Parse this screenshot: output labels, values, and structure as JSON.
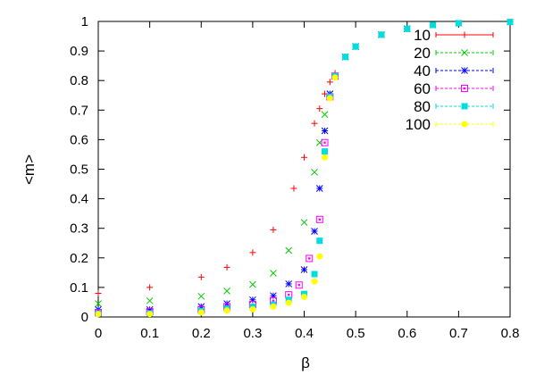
{
  "chart_data": {
    "type": "scatter",
    "title": "",
    "xlabel": "β",
    "ylabel": "<m>",
    "xlim": [
      0,
      0.8
    ],
    "ylim": [
      0,
      1
    ],
    "xticks": [
      "0",
      "0.1",
      "0.2",
      "0.3",
      "0.4",
      "0.5",
      "0.6",
      "0.7",
      "0.8"
    ],
    "yticks": [
      "0",
      "0.1",
      "0.2",
      "0.3",
      "0.4",
      "0.5",
      "0.6",
      "0.7",
      "0.8",
      "0.9",
      "1"
    ],
    "grid": false,
    "legend_position": "top-right",
    "series": [
      {
        "name": "10",
        "color": "#ff0000",
        "marker": "plus",
        "points": [
          [
            0,
            0.08
          ],
          [
            0.1,
            0.1
          ],
          [
            0.2,
            0.135
          ],
          [
            0.25,
            0.168
          ],
          [
            0.3,
            0.218
          ],
          [
            0.34,
            0.295
          ],
          [
            0.38,
            0.435
          ],
          [
            0.4,
            0.54
          ],
          [
            0.42,
            0.655
          ],
          [
            0.43,
            0.705
          ],
          [
            0.44,
            0.755
          ],
          [
            0.45,
            0.795
          ],
          [
            0.46,
            0.825
          ],
          [
            0.5,
            0.915
          ],
          [
            0.55,
            0.955
          ],
          [
            0.6,
            0.975
          ],
          [
            0.65,
            0.988
          ],
          [
            0.7,
            0.994
          ],
          [
            0.8,
            0.998
          ]
        ]
      },
      {
        "name": "20",
        "color": "#00cc00",
        "marker": "cross",
        "points": [
          [
            0,
            0.045
          ],
          [
            0.1,
            0.055
          ],
          [
            0.2,
            0.07
          ],
          [
            0.25,
            0.088
          ],
          [
            0.3,
            0.11
          ],
          [
            0.34,
            0.148
          ],
          [
            0.37,
            0.225
          ],
          [
            0.4,
            0.32
          ],
          [
            0.42,
            0.49
          ],
          [
            0.43,
            0.59
          ],
          [
            0.44,
            0.685
          ],
          [
            0.45,
            0.755
          ],
          [
            0.46,
            0.815
          ],
          [
            0.48,
            0.88
          ],
          [
            0.5,
            0.915
          ],
          [
            0.55,
            0.955
          ],
          [
            0.6,
            0.975
          ],
          [
            0.65,
            0.988
          ],
          [
            0.7,
            0.994
          ],
          [
            0.8,
            0.998
          ]
        ]
      },
      {
        "name": "40",
        "color": "#0000ff",
        "marker": "star",
        "points": [
          [
            0,
            0.025
          ],
          [
            0.1,
            0.025
          ],
          [
            0.2,
            0.035
          ],
          [
            0.25,
            0.045
          ],
          [
            0.3,
            0.058
          ],
          [
            0.34,
            0.072
          ],
          [
            0.37,
            0.112
          ],
          [
            0.4,
            0.16
          ],
          [
            0.42,
            0.29
          ],
          [
            0.43,
            0.435
          ],
          [
            0.44,
            0.63
          ],
          [
            0.45,
            0.755
          ],
          [
            0.46,
            0.815
          ],
          [
            0.48,
            0.88
          ],
          [
            0.5,
            0.915
          ],
          [
            0.55,
            0.955
          ],
          [
            0.6,
            0.975
          ]
        ]
      },
      {
        "name": "60",
        "color": "#ff00ff",
        "marker": "open-square",
        "points": [
          [
            0,
            0.015
          ],
          [
            0.1,
            0.018
          ],
          [
            0.2,
            0.025
          ],
          [
            0.25,
            0.035
          ],
          [
            0.3,
            0.042
          ],
          [
            0.34,
            0.055
          ],
          [
            0.37,
            0.075
          ],
          [
            0.39,
            0.108
          ],
          [
            0.41,
            0.198
          ],
          [
            0.43,
            0.33
          ],
          [
            0.44,
            0.59
          ],
          [
            0.45,
            0.745
          ],
          [
            0.46,
            0.815
          ]
        ]
      },
      {
        "name": "80",
        "color": "#00dddd",
        "marker": "filled-square",
        "points": [
          [
            0,
            0.012
          ],
          [
            0.1,
            0.012
          ],
          [
            0.2,
            0.02
          ],
          [
            0.25,
            0.028
          ],
          [
            0.3,
            0.034
          ],
          [
            0.34,
            0.042
          ],
          [
            0.37,
            0.058
          ],
          [
            0.4,
            0.078
          ],
          [
            0.42,
            0.145
          ],
          [
            0.43,
            0.258
          ],
          [
            0.44,
            0.56
          ],
          [
            0.45,
            0.745
          ],
          [
            0.46,
            0.815
          ],
          [
            0.48,
            0.88
          ],
          [
            0.5,
            0.915
          ],
          [
            0.55,
            0.955
          ],
          [
            0.6,
            0.975
          ],
          [
            0.65,
            0.988
          ],
          [
            0.7,
            0.994
          ],
          [
            0.8,
            0.998
          ]
        ]
      },
      {
        "name": "100",
        "color": "#ffff00",
        "marker": "filled-circle",
        "points": [
          [
            0,
            0.01
          ],
          [
            0.1,
            0.01
          ],
          [
            0.2,
            0.015
          ],
          [
            0.25,
            0.022
          ],
          [
            0.3,
            0.026
          ],
          [
            0.34,
            0.035
          ],
          [
            0.37,
            0.048
          ],
          [
            0.4,
            0.068
          ],
          [
            0.42,
            0.12
          ],
          [
            0.43,
            0.205
          ],
          [
            0.44,
            0.54
          ],
          [
            0.45,
            0.74
          ],
          [
            0.46,
            0.81
          ]
        ]
      }
    ]
  }
}
